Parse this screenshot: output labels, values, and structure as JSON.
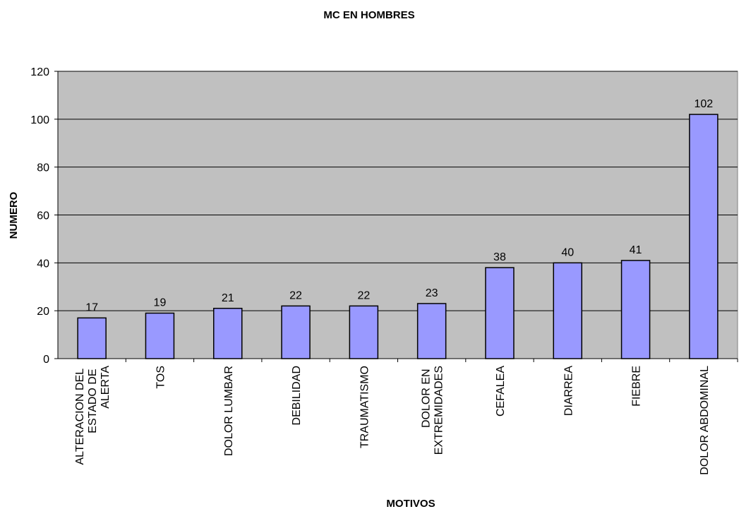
{
  "chart_data": {
    "type": "bar",
    "title": "MC EN HOMBRES",
    "x_label": "MOTIVOS",
    "y_label": "NUMERO",
    "categories": [
      "ALTERACION DEL ESTADO DE ALERTA",
      "TOS",
      "DOLOR LUMBAR",
      "DEBILIDAD",
      "TRAUMATISMO",
      "DOLOR EN EXTREMIDADES",
      "CEFALEA",
      "DIARREA",
      "FIEBRE",
      "DOLOR ABDOMINAL"
    ],
    "values": [
      17,
      19,
      21,
      22,
      22,
      23,
      38,
      40,
      41,
      102
    ],
    "color": "#9999ff",
    "background": "#c0c0c0",
    "ylim": [
      0,
      120
    ],
    "yticks": [
      0,
      20,
      40,
      60,
      80,
      100,
      120
    ],
    "grid": true
  }
}
